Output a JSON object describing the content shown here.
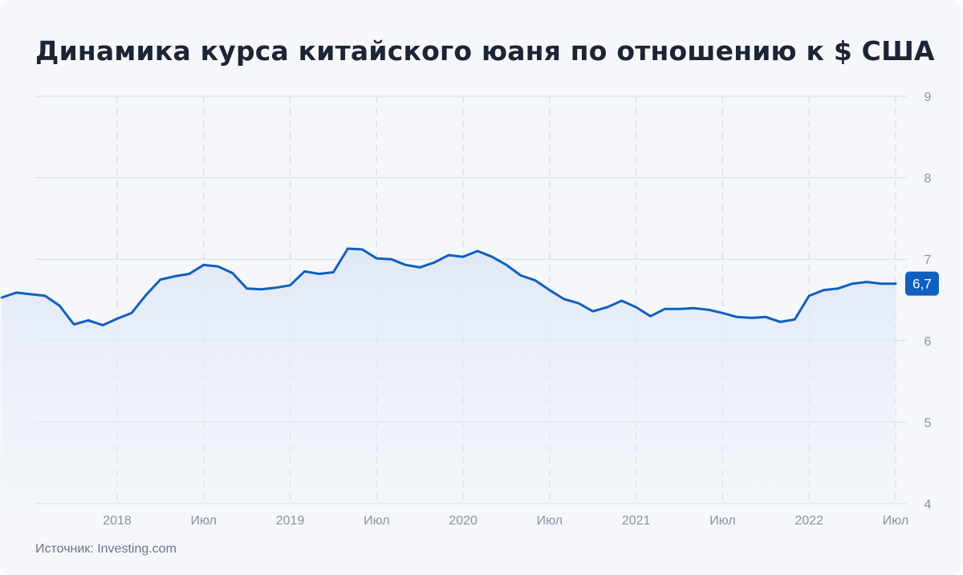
{
  "title": "Динамика курса китайского юаня по отношению к $ США",
  "source": "Источник: Investing.com",
  "colors": {
    "line": "#1060c0",
    "grid": "#d5dbe6",
    "background": "#f5f7fb",
    "text": "#1d2433",
    "tick_text": "#8a92a0"
  },
  "chart_data": {
    "type": "area",
    "title": "Динамика курса китайского юаня по отношению к $ США",
    "xlabel": "",
    "ylabel": "",
    "ylim": [
      4,
      9
    ],
    "yticks": [
      4,
      5,
      6,
      7,
      8,
      9
    ],
    "y_axis_position": "right",
    "x_tick_labels": [
      {
        "label": "2018",
        "date": "2018-01"
      },
      {
        "label": "Июл",
        "date": "2018-07"
      },
      {
        "label": "2019",
        "date": "2019-01"
      },
      {
        "label": "Июл",
        "date": "2019-07"
      },
      {
        "label": "2020",
        "date": "2020-01"
      },
      {
        "label": "Июл",
        "date": "2020-07"
      },
      {
        "label": "2021",
        "date": "2021-01"
      },
      {
        "label": "Июл",
        "date": "2021-07"
      },
      {
        "label": "2022",
        "date": "2022-01"
      },
      {
        "label": "Июл",
        "date": "2022-07"
      }
    ],
    "grid": true,
    "last_value_label": "6,7",
    "series": [
      {
        "x": [
          "2017-05",
          "2017-06",
          "2017-07",
          "2017-08",
          "2017-09",
          "2017-10",
          "2017-11",
          "2017-12",
          "2018-01",
          "2018-02",
          "2018-03",
          "2018-04",
          "2018-05",
          "2018-06",
          "2018-07",
          "2018-08",
          "2018-09",
          "2018-10",
          "2018-11",
          "2018-12",
          "2019-01",
          "2019-02",
          "2019-03",
          "2019-04",
          "2019-05",
          "2019-06",
          "2019-07",
          "2019-08",
          "2019-09",
          "2019-10",
          "2019-11",
          "2019-12",
          "2020-01",
          "2020-02",
          "2020-03",
          "2020-04",
          "2020-05",
          "2020-06",
          "2020-07",
          "2020-08",
          "2020-09",
          "2020-10",
          "2020-11",
          "2020-12",
          "2021-01",
          "2021-02",
          "2021-03",
          "2021-04",
          "2021-05",
          "2021-06",
          "2021-07",
          "2021-08",
          "2021-09",
          "2021-10",
          "2021-11",
          "2021-12",
          "2022-01",
          "2022-02",
          "2022-03",
          "2022-04",
          "2022-05",
          "2022-06",
          "2022-07"
        ],
        "values": [
          6.53,
          6.59,
          6.57,
          6.55,
          6.43,
          6.2,
          6.25,
          6.19,
          6.27,
          6.34,
          6.56,
          6.75,
          6.79,
          6.82,
          6.93,
          6.91,
          6.83,
          6.64,
          6.63,
          6.65,
          6.68,
          6.85,
          6.82,
          6.84,
          7.13,
          7.12,
          7.01,
          7.0,
          6.93,
          6.9,
          6.96,
          7.05,
          7.03,
          7.1,
          7.03,
          6.93,
          6.8,
          6.74,
          6.62,
          6.51,
          6.46,
          6.36,
          6.41,
          6.49,
          6.41,
          6.3,
          6.39,
          6.39,
          6.4,
          6.38,
          6.34,
          6.29,
          6.28,
          6.29,
          6.23,
          6.26,
          6.55,
          6.62,
          6.64,
          6.7,
          6.72,
          6.7,
          6.7
        ]
      }
    ]
  }
}
